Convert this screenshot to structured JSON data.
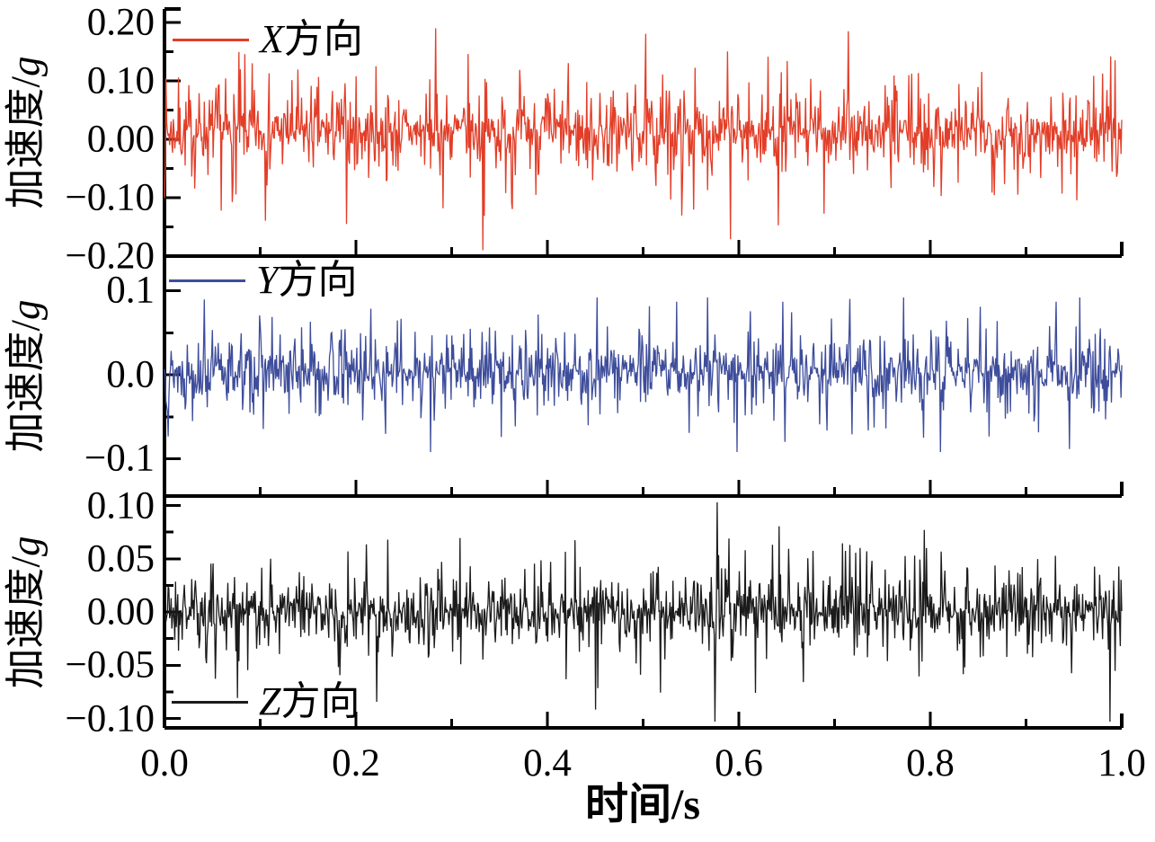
{
  "chart_data": {
    "type": "line",
    "title": "",
    "xlabel": "时间/s",
    "ylabel": "加速度/g",
    "x_range": [
      0.0,
      1.0
    ],
    "x_tick_labels": [
      "0.0",
      "0.2",
      "0.4",
      "0.6",
      "0.8",
      "1.0"
    ],
    "x_major_step": 0.2,
    "x_minor_step": 0.1,
    "grid": false,
    "subplots": [
      {
        "id": "X",
        "legend": "X方向",
        "color": "#e23e28",
        "ylim": [
          -0.2,
          0.22
        ],
        "ytick_values": [
          0.2,
          0.1,
          0.0,
          -0.1,
          -0.2
        ],
        "ytick_labels": [
          "0.20",
          "0.10",
          "0.00",
          "−0.10",
          "−0.20"
        ],
        "y_minor_step": 0.05,
        "legend_position": "top-left",
        "signal": {
          "kind": "random-vibration-noise",
          "points": 1300,
          "laplace_scale": 0.03,
          "peak_clamp": 0.19,
          "offset": 0.012,
          "seed": 7
        }
      },
      {
        "id": "Y",
        "legend": "Y方向",
        "color": "#3e4d9b",
        "ylim": [
          -0.145,
          0.141
        ],
        "ytick_values": [
          0.1,
          0.0,
          -0.1
        ],
        "ytick_labels": [
          "0.1",
          "0.0",
          "−0.1"
        ],
        "y_minor_step": 0.05,
        "legend_position": "top-left",
        "signal": {
          "kind": "random-vibration-noise",
          "points": 1300,
          "laplace_scale": 0.018,
          "peak_clamp": 0.092,
          "offset": 0.004,
          "seed": 13
        }
      },
      {
        "id": "Z",
        "legend": "Z方向",
        "color": "#1b1b1b",
        "ylim": [
          -0.109,
          0.109
        ],
        "ytick_values": [
          0.1,
          0.05,
          0.0,
          -0.05,
          -0.1
        ],
        "ytick_labels": [
          "0.10",
          "0.05",
          "0.00",
          "−0.05",
          "−0.10"
        ],
        "y_minor_step": 0.025,
        "legend_position": "bottom-left",
        "signal": {
          "kind": "random-vibration-noise",
          "points": 1300,
          "laplace_scale": 0.016,
          "peak_clamp": 0.103,
          "offset": 0.0,
          "seed": 21
        }
      }
    ]
  },
  "labels": {
    "ylabel_main": "加速度/",
    "ylabel_unit": "g",
    "xlabel": "时间/s"
  }
}
